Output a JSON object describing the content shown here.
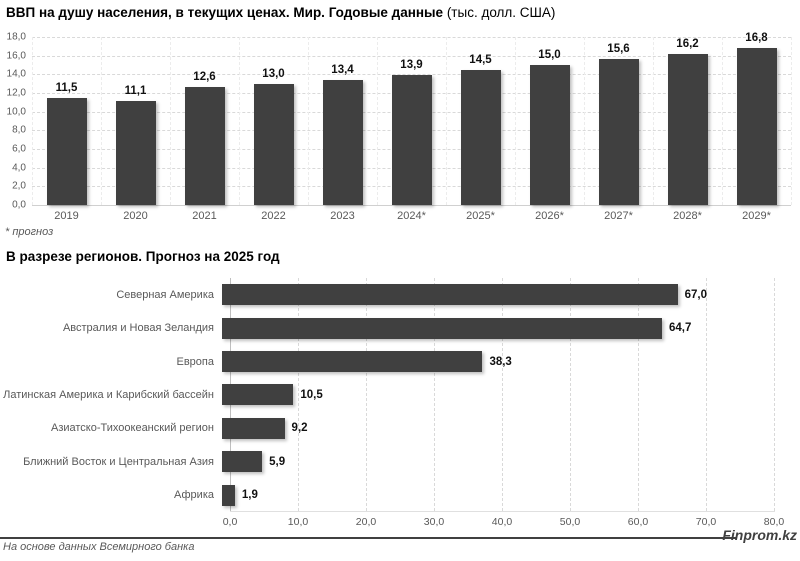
{
  "header": {
    "title_main": "ВВП на душу населения, в текущих ценах. Мир. Годовые данные",
    "title_unit": " (тыс. долл. США)",
    "footnote": "* прогноз",
    "section2_title": "В разрезе регионов. Прогноз на 2025 год"
  },
  "footer": {
    "source": "На основе данных Всемирного банка",
    "brand": "Finprom.kz"
  },
  "colors": {
    "bar": "#404040",
    "gridline": "#d9d9d9",
    "axis_text": "#595959",
    "value_label": "#111111"
  },
  "chart_data": [
    {
      "type": "bar",
      "title": "ВВП на душу населения, в текущих ценах. Мир. Годовые данные (тыс. долл. США)",
      "categories": [
        "2019",
        "2020",
        "2021",
        "2022",
        "2023",
        "2024*",
        "2025*",
        "2026*",
        "2027*",
        "2028*",
        "2029*"
      ],
      "values": [
        11.5,
        11.1,
        12.6,
        13.0,
        13.4,
        13.9,
        14.5,
        15.0,
        15.6,
        16.2,
        16.8
      ],
      "value_labels": [
        "11,5",
        "11,1",
        "12,6",
        "13,0",
        "13,4",
        "13,9",
        "14,5",
        "15,0",
        "15,6",
        "16,2",
        "16,8"
      ],
      "ylabel": "",
      "ylim": [
        0,
        18
      ],
      "ytick_labels": [
        "0,0",
        "2,0",
        "4,0",
        "6,0",
        "8,0",
        "10,0",
        "12,0",
        "14,0",
        "16,0",
        "18,0"
      ],
      "grid": true,
      "legend": false
    },
    {
      "type": "bar",
      "orientation": "horizontal",
      "title": "В разрезе регионов. Прогноз на 2025 год",
      "categories": [
        "Северная Америка",
        "Австралия и Новая Зеландия",
        "Европа",
        "Латинская Америка и Карибский бассейн",
        "Азиатско-Тихоокеанский регион",
        "Ближний Восток и Центральная Азия",
        "Африка"
      ],
      "values": [
        67.0,
        64.7,
        38.3,
        10.5,
        9.2,
        5.9,
        1.9
      ],
      "value_labels": [
        "67,0",
        "64,7",
        "38,3",
        "10,5",
        "9,2",
        "5,9",
        "1,9"
      ],
      "xlim": [
        0,
        80
      ],
      "xtick_labels": [
        "0,0",
        "10,0",
        "20,0",
        "30,0",
        "40,0",
        "50,0",
        "60,0",
        "70,0",
        "80,0"
      ],
      "grid": true,
      "legend": false
    }
  ]
}
